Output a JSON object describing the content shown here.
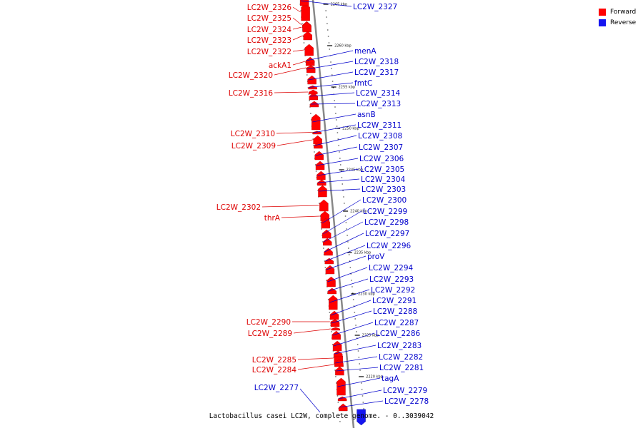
{
  "caption": "Lactobacillus casei LC2W, complete genome. - 0..3039042",
  "legend": {
    "forward_label": "Forward",
    "reverse_label": "Reverse"
  },
  "colors": {
    "forward": "#ff0000",
    "reverse": "#1515f0",
    "forward_text": "#dd0000",
    "reverse_text": "#0000cc",
    "backbone": "#888888"
  },
  "ticks": [
    "2265 kbp",
    "2260 kbp",
    "2255 kbp",
    "2250 kbp",
    "2245 kbp",
    "2240 kbp",
    "2235 kbp",
    "2230 kbp",
    "2225 kbp",
    "2220 kbp"
  ],
  "forward_genes": [
    "LC2W_2326",
    "LC2W_2325",
    "LC2W_2324",
    "LC2W_2323",
    "LC2W_2322",
    "ackA1",
    "LC2W_2320",
    "LC2W_2316",
    "LC2W_2310",
    "LC2W_2309",
    "LC2W_2302",
    "thrA",
    "LC2W_2290",
    "LC2W_2289",
    "LC2W_2285",
    "LC2W_2284"
  ],
  "reverse_genes": [
    "LC2W_2327",
    "menA",
    "LC2W_2318",
    "LC2W_2317",
    "fmtC",
    "LC2W_2314",
    "LC2W_2313",
    "asnB",
    "LC2W_2311",
    "LC2W_2308",
    "LC2W_2307",
    "LC2W_2306",
    "LC2W_2305",
    "LC2W_2304",
    "LC2W_2303",
    "LC2W_2300",
    "LC2W_2299",
    "LC2W_2298",
    "LC2W_2297",
    "LC2W_2296",
    "proV",
    "LC2W_2294",
    "LC2W_2293",
    "LC2W_2292",
    "LC2W_2291",
    "LC2W_2288",
    "LC2W_2287",
    "LC2W_2286",
    "LC2W_2283",
    "LC2W_2282",
    "LC2W_2281",
    "tagA",
    "LC2W_2279",
    "LC2W_2278",
    "LC2W_2277"
  ]
}
